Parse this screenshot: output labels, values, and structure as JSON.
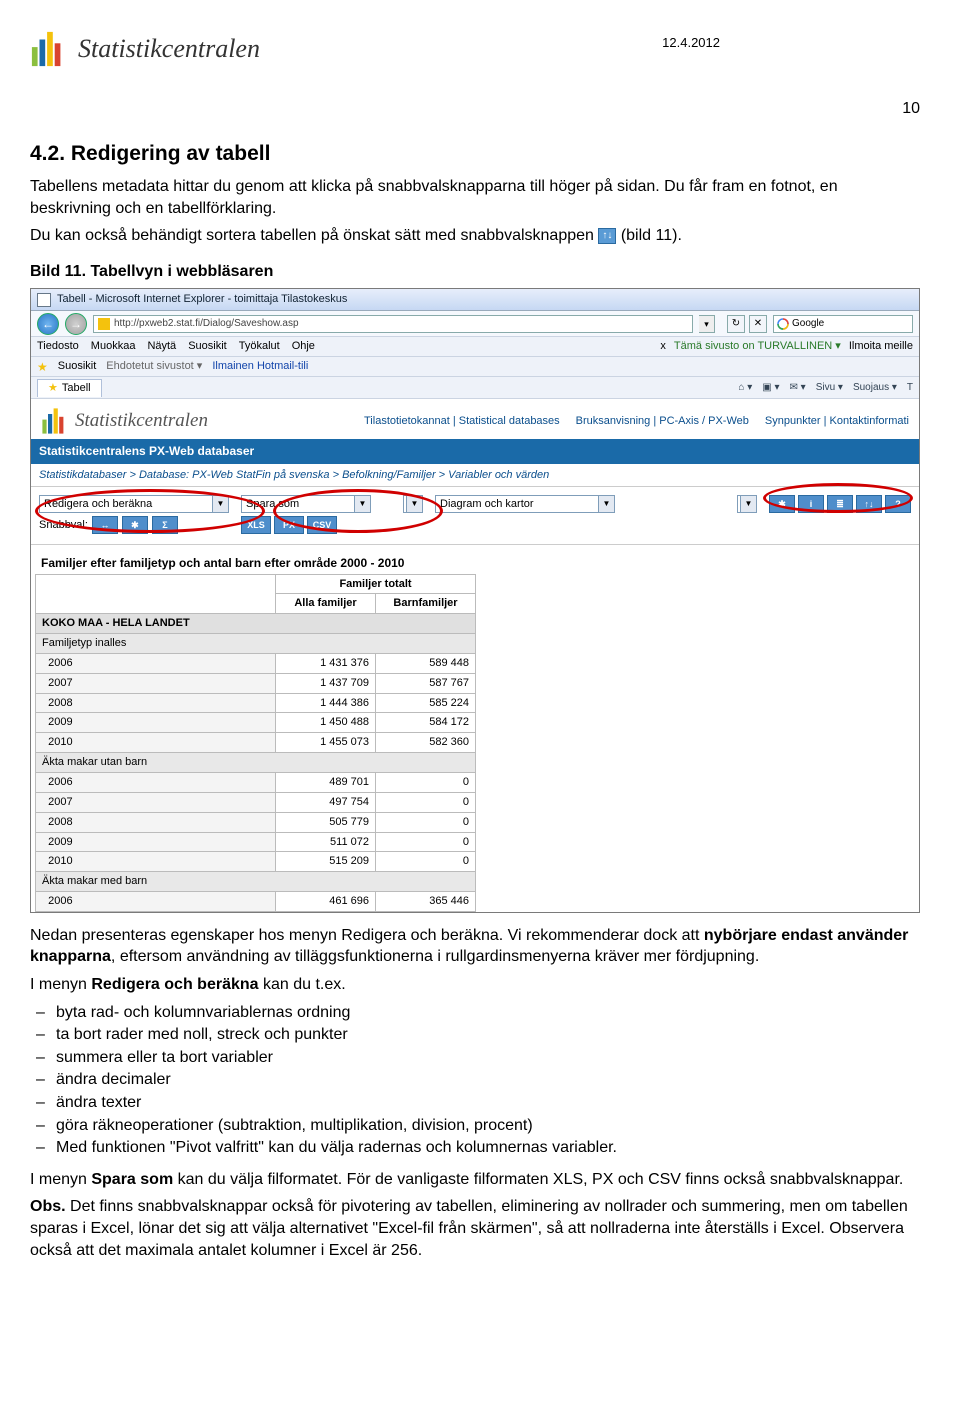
{
  "header": {
    "brand": "Statistikcentralen",
    "date": "12.4.2012",
    "page_number": "10"
  },
  "doc": {
    "h1": "4.2. Redigering av tabell",
    "p1": "Tabellens metadata hittar du genom att klicka på snabbvalsknapparna till höger på sidan. Du får fram en fotnot, en beskrivning och en tabellförklaring.",
    "p2a": "Du kan också behändigt sortera tabellen på önskat sätt med snabbvalsknappen",
    "p2b": " (bild 11).",
    "caption": "Bild 11. Tabellvyn i webbläsaren",
    "after1a": "Nedan presenteras egenskaper hos menyn Redigera och beräkna. Vi rekommenderar dock att ",
    "after1b": "nybörjare endast använder knapparna",
    "after1c": ", eftersom användning av tilläggsfunktionerna i rullgardinsmenyerna kräver mer fördjupning.",
    "after2a": "I menyn ",
    "after2b": "Redigera och beräkna",
    "after2c": " kan du t.ex.",
    "bullets": [
      "byta rad- och kolumnvariablernas ordning",
      "ta bort rader med noll, streck och punkter",
      "summera eller ta bort variabler",
      "ändra decimaler",
      "ändra texter",
      "göra räkneoperationer (subtraktion, multiplikation, division, procent)",
      "Med funktionen \"Pivot valfritt\" kan du välja radernas och kolumnernas variabler."
    ],
    "after3a": "I menyn ",
    "after3b": "Spara som",
    "after3c": " kan du välja filformatet. För de vanligaste filformaten XLS, PX och CSV finns också snabbvalsknappar.",
    "after4a": "Obs.",
    "after4b": " Det finns snabbvalsknappar också för pivotering av tabellen, eliminering av nollrader och summering, men om tabellen sparas i Excel, lönar det sig att välja alternativet \"Excel-fil från skärmen\", så att nollraderna inte återställs i Excel. Observera också att det maximala antalet kolumner i Excel är 256."
  },
  "shot": {
    "ie_title": "Tabell - Microsoft Internet Explorer - toimittaja Tilastokeskus",
    "url": "http://pxweb2.stat.fi/Dialog/Saveshow.asp",
    "search_engine": "Google",
    "menu": [
      "Tiedosto",
      "Muokkaa",
      "Näytä",
      "Suosikit",
      "Työkalut",
      "Ohje"
    ],
    "menu_right_a": "Tämä sivusto on TURVALLINEN ▾",
    "menu_right_b": "Ilmoita meille",
    "menu_x": "x",
    "fav_bar": [
      "Suosikit",
      "Ehdotetut sivustot ▾",
      "Ilmainen Hotmail-tili"
    ],
    "tab_label": "Tabell",
    "tab_tools": [
      "⌂ ▾",
      "▣ ▾",
      "✉ ▾",
      "Sivu ▾",
      "Suojaus ▾",
      "T"
    ],
    "site_brand": "Statistikcentralen",
    "site_links": [
      "Tilastotietokannat | Statistical databases",
      "Bruksanvisning | PC-Axis / PX-Web",
      "Synpunkter | Kontaktinformati"
    ],
    "blue_bar": "Statistikcentralens PX-Web databaser",
    "breadcrumb": "Statistikdatabaser > Database: PX-Web StatFin på svenska > Befolkning/Familjer > Variabler och värden",
    "toolbar": {
      "sel1": "Redigera och beräkna",
      "snabbval_label": "Snabbval:",
      "sn_btns": [
        "↔",
        "✱",
        "Σ"
      ],
      "sel2": "Spara som",
      "fmt_btns": [
        "XLS",
        "PX",
        "CSV"
      ],
      "sel3": "Diagram och kartor",
      "right_btns": [
        "✱",
        "i",
        "≣",
        "↑↓",
        "?"
      ]
    },
    "table": {
      "title": "Familjer efter familjetyp och antal barn efter område 2000 - 2010",
      "super_header": "Familjer totalt",
      "cols": [
        "Alla familjer",
        "Barnfamiljer"
      ],
      "main_row": "KOKO MAA - HELA LANDET",
      "groups": [
        {
          "label": "Familjetyp inalles",
          "rows": [
            {
              "y": "2006",
              "a": "1 431 376",
              "b": "589 448"
            },
            {
              "y": "2007",
              "a": "1 437 709",
              "b": "587 767"
            },
            {
              "y": "2008",
              "a": "1 444 386",
              "b": "585 224"
            },
            {
              "y": "2009",
              "a": "1 450 488",
              "b": "584 172"
            },
            {
              "y": "2010",
              "a": "1 455 073",
              "b": "582 360"
            }
          ]
        },
        {
          "label": "Äkta makar utan barn",
          "rows": [
            {
              "y": "2006",
              "a": "489 701",
              "b": "0"
            },
            {
              "y": "2007",
              "a": "497 754",
              "b": "0"
            },
            {
              "y": "2008",
              "a": "505 779",
              "b": "0"
            },
            {
              "y": "2009",
              "a": "511 072",
              "b": "0"
            },
            {
              "y": "2010",
              "a": "515 209",
              "b": "0"
            }
          ]
        },
        {
          "label": "Äkta makar med barn",
          "rows": [
            {
              "y": "2006",
              "a": "461 696",
              "b": "365 446"
            }
          ]
        }
      ]
    }
  },
  "colors": {
    "brand_text": "#333333",
    "link_blue": "#0a4e8c",
    "toolbar_blue": "#4f8ecb",
    "blue_bar": "#1a6aa8",
    "ellipse_red": "#d00000"
  }
}
